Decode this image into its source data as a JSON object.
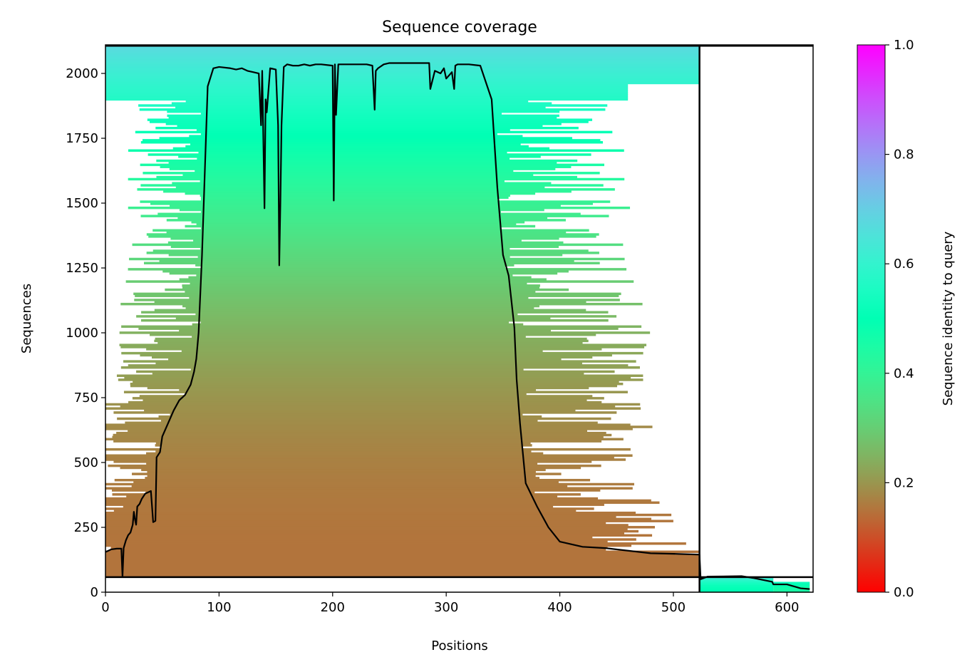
{
  "chart_data": {
    "type": "heatmap",
    "title": "Sequence coverage",
    "xlabel": "Positions",
    "ylabel": "Sequences",
    "xlim": [
      0,
      623
    ],
    "ylim": [
      0,
      2110
    ],
    "x_ticks": [
      0,
      100,
      200,
      300,
      400,
      500,
      600
    ],
    "y_ticks": [
      0,
      250,
      500,
      750,
      1000,
      1250,
      1500,
      1750,
      2000
    ],
    "colorbar": {
      "label": "Sequence identity to query",
      "range": [
        0.0,
        1.0
      ],
      "ticks": [
        "0.0",
        "0.2",
        "0.4",
        "0.6",
        "0.8",
        "1.0"
      ],
      "colormap": "rainbow_r"
    },
    "chain_boundaries": {
      "x": 523,
      "y": 58
    },
    "heatmap_bands": [
      {
        "y0": 58,
        "y1": 2110,
        "x0": 0,
        "x1": 523,
        "identity_bottom": 0.15,
        "identity_top": 0.68
      },
      {
        "y0": 0,
        "y1": 58,
        "x0": 523,
        "x1": 588,
        "identity_bottom": 0.5,
        "identity_top": 0.65
      },
      {
        "y0": 0,
        "y1": 40,
        "x0": 588,
        "x1": 620,
        "identity_bottom": 0.45,
        "identity_top": 0.55
      }
    ],
    "coverage_line": {
      "x": [
        0,
        5,
        10,
        14,
        15,
        16,
        18,
        20,
        22,
        24,
        25,
        26,
        27,
        28,
        30,
        32,
        35,
        40,
        42,
        44,
        45,
        48,
        50,
        55,
        60,
        65,
        70,
        75,
        78,
        80,
        82,
        84,
        85,
        90,
        95,
        100,
        110,
        115,
        120,
        125,
        130,
        135,
        137,
        138,
        140,
        141,
        142,
        145,
        150,
        152,
        153,
        154,
        155,
        157,
        160,
        165,
        170,
        175,
        180,
        185,
        190,
        200,
        201,
        202,
        203,
        205,
        210,
        220,
        230,
        235,
        237,
        238,
        240,
        245,
        250,
        260,
        270,
        280,
        285,
        286,
        290,
        295,
        298,
        300,
        305,
        307,
        308,
        310,
        320,
        330,
        340,
        345,
        350,
        355,
        360,
        362,
        365,
        370,
        380,
        390,
        400,
        410,
        420,
        440,
        460,
        480,
        500,
        523,
        524,
        530,
        560,
        570,
        587,
        588,
        600,
        608,
        612,
        620
      ],
      "y": [
        155,
        165,
        168,
        168,
        60,
        170,
        200,
        220,
        230,
        260,
        310,
        280,
        260,
        330,
        340,
        360,
        380,
        390,
        270,
        275,
        520,
        540,
        600,
        650,
        700,
        740,
        760,
        800,
        850,
        900,
        1000,
        1200,
        1300,
        1950,
        2020,
        2025,
        2020,
        2015,
        2020,
        2010,
        2005,
        2000,
        1800,
        2010,
        1480,
        1900,
        1850,
        2020,
        2015,
        1800,
        1260,
        1500,
        1800,
        2025,
        2035,
        2030,
        2030,
        2035,
        2030,
        2035,
        2035,
        2030,
        1510,
        2035,
        1840,
        2035,
        2035,
        2035,
        2035,
        2030,
        1860,
        2010,
        2020,
        2035,
        2040,
        2040,
        2040,
        2040,
        2040,
        1940,
        2010,
        2000,
        2020,
        1980,
        2005,
        1940,
        2030,
        2035,
        2035,
        2030,
        1900,
        1560,
        1300,
        1220,
        1020,
        820,
        650,
        420,
        330,
        250,
        195,
        185,
        175,
        170,
        160,
        150,
        148,
        145,
        50,
        60,
        62,
        55,
        40,
        30,
        30,
        20,
        15,
        12
      ]
    }
  }
}
